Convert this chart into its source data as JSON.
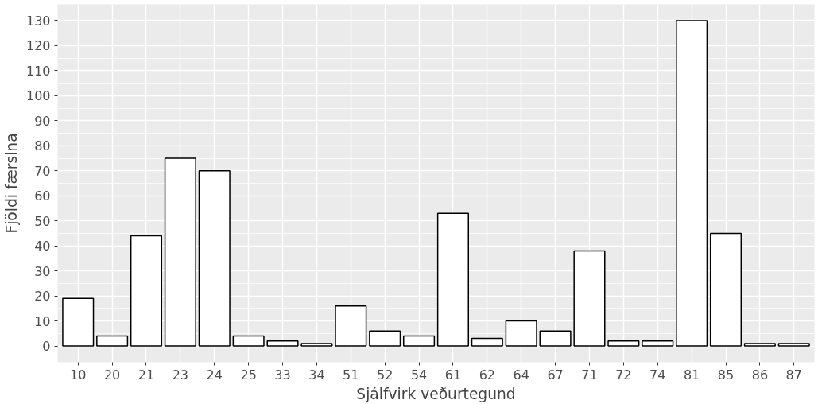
{
  "chart_data": {
    "type": "bar",
    "xlabel": "Sjálfvirk veðurtegund",
    "ylabel": "Fjöldi færslna",
    "categories": [
      "10",
      "20",
      "21",
      "23",
      "24",
      "25",
      "33",
      "34",
      "51",
      "52",
      "54",
      "61",
      "62",
      "64",
      "67",
      "71",
      "72",
      "74",
      "81",
      "85",
      "86",
      "87"
    ],
    "values": [
      19,
      4,
      44,
      75,
      70,
      4,
      2,
      1,
      16,
      6,
      4,
      53,
      3,
      10,
      6,
      38,
      2,
      2,
      130,
      45,
      1,
      1
    ],
    "color": "#ffffff",
    "ylim": [
      -6.5,
      136.5
    ],
    "yticks": [
      0,
      10,
      20,
      30,
      40,
      50,
      60,
      70,
      80,
      90,
      100,
      110,
      120,
      130
    ],
    "grid": true
  }
}
